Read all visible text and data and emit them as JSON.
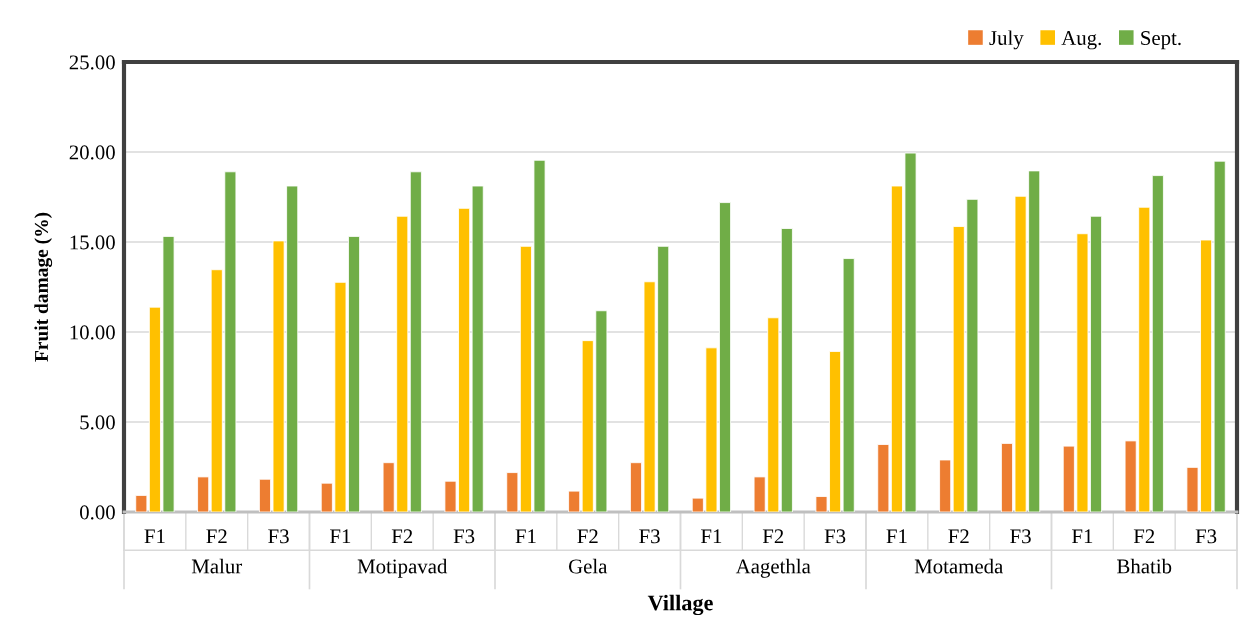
{
  "chart_data": {
    "type": "bar",
    "xlabel": "Village",
    "ylabel": "Fruit damage (%)",
    "categories": [
      "F1",
      "F2",
      "F3",
      "F1",
      "F2",
      "F3",
      "F1",
      "F2",
      "F3",
      "F1",
      "F2",
      "F3",
      "F1",
      "F2",
      "F3",
      "F1",
      "F2",
      "F3"
    ],
    "annotations": [
      "Malur",
      "Motipavad",
      "Gela",
      "Aagethla",
      "Motameda",
      "Bhatib"
    ],
    "series": [
      {
        "name": "July",
        "color": "#ed7d31",
        "values": [
          0.92,
          1.95,
          1.82,
          1.6,
          2.74,
          1.71,
          2.19,
          1.16,
          2.74,
          0.77,
          1.95,
          0.86,
          3.75,
          2.89,
          3.81,
          3.66,
          3.95,
          2.48
        ]
      },
      {
        "name": "Aug.",
        "color": "#ffc000",
        "values": [
          11.38,
          13.46,
          15.06,
          12.76,
          16.43,
          16.87,
          14.76,
          9.52,
          12.79,
          9.12,
          10.79,
          8.92,
          18.11,
          15.86,
          17.54,
          15.46,
          16.93,
          15.11
        ]
      },
      {
        "name": "Sept.",
        "color": "#70ad47",
        "values": [
          15.31,
          18.9,
          18.11,
          15.31,
          18.9,
          18.11,
          19.54,
          11.18,
          14.76,
          17.19,
          15.75,
          14.08,
          19.94,
          17.37,
          18.95,
          16.43,
          18.69,
          19.49
        ]
      }
    ],
    "ylim": [
      0,
      25
    ],
    "yticks": [
      {
        "value": 0,
        "label": "0.00"
      },
      {
        "value": 5,
        "label": "5.00"
      },
      {
        "value": 10,
        "label": "10.00"
      },
      {
        "value": 15,
        "label": "15.00"
      },
      {
        "value": 20,
        "label": "20.00"
      },
      {
        "value": 25,
        "label": "25.00"
      }
    ],
    "grid": "y",
    "legend": "top right"
  }
}
